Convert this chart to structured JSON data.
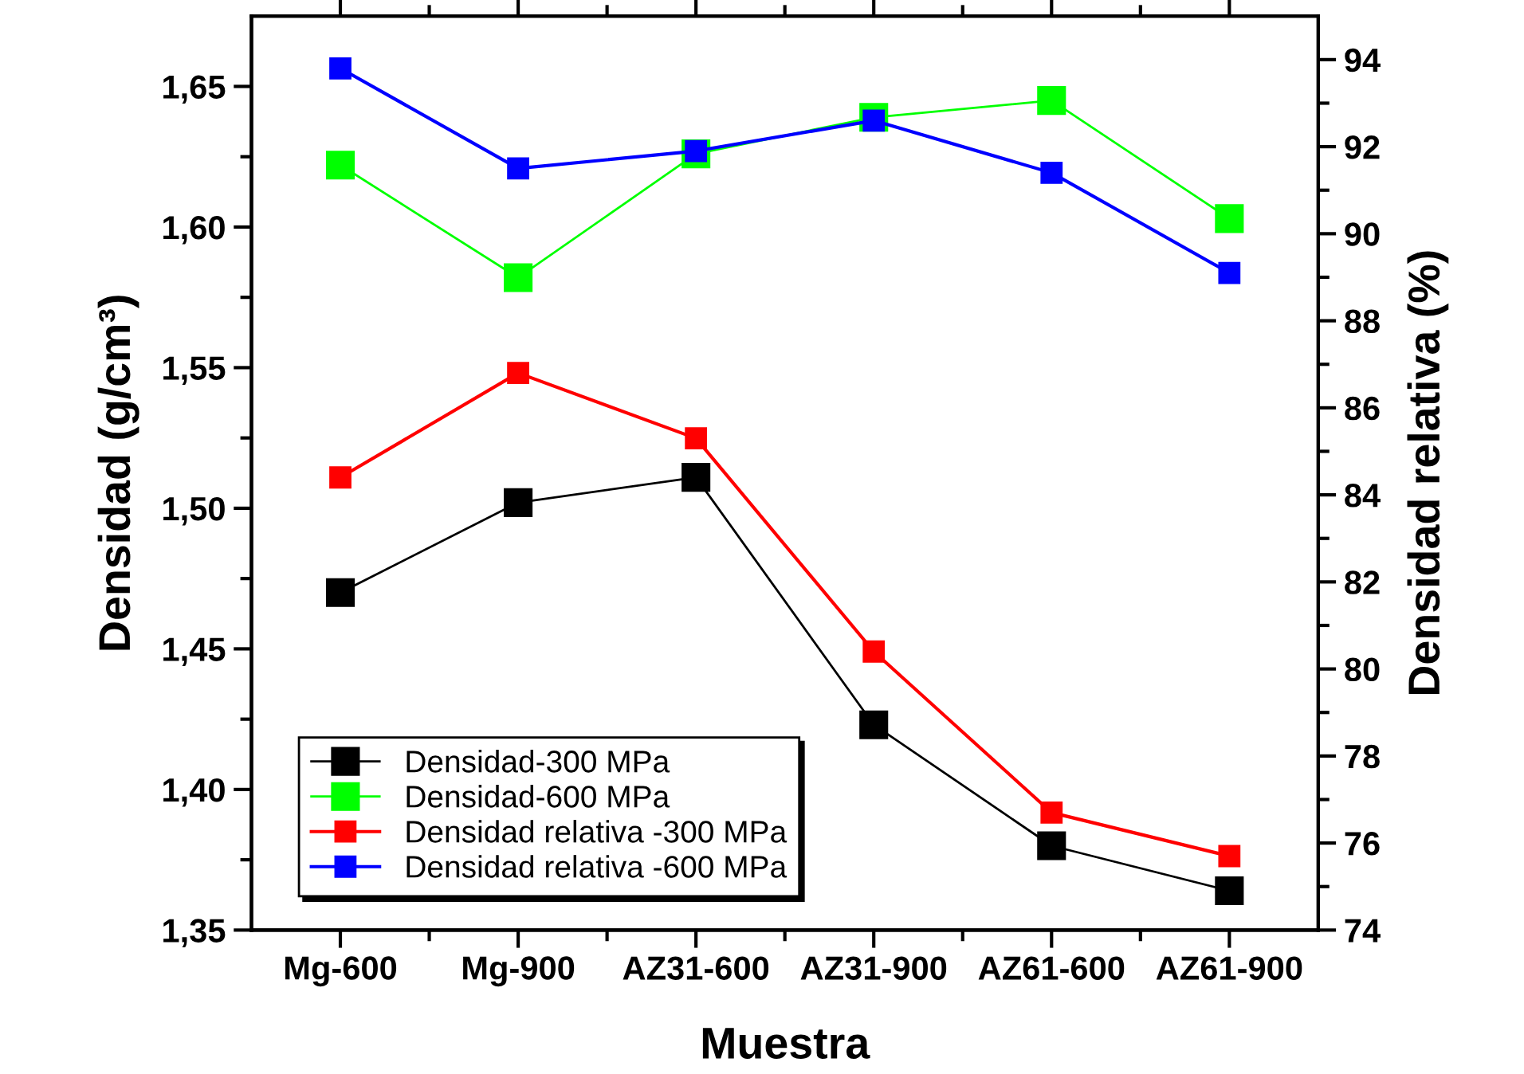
{
  "chart_data": {
    "type": "line",
    "xlabel": "Muestra",
    "ylabel": "Densidad (g/cm³)",
    "y2label": "Densidad relativa (%)",
    "categories": [
      "Mg-600",
      "Mg-900",
      "AZ31-600",
      "AZ31-900",
      "AZ61-600",
      "AZ61-900"
    ],
    "series": [
      {
        "name": "Densidad-300 MPa",
        "color": "#000000",
        "values": [
          1.47,
          1.502,
          1.511,
          1.423,
          1.38,
          1.364
        ]
      },
      {
        "name": "Densidad-600 MPa",
        "color": "#00ff00",
        "values": [
          1.622,
          1.582,
          1.626,
          1.639,
          1.645,
          1.603
        ]
      },
      {
        "name": "Densidad relativa -300 MPa",
        "color": "#ff0000",
        "axis": "y2",
        "values": [
          84.4,
          86.8,
          85.3,
          80.4,
          76.7,
          75.7
        ]
      },
      {
        "name": "Densidad relativa -600 MPa",
        "color": "#0000ff",
        "axis": "y2",
        "values": [
          93.8,
          91.5,
          91.9,
          92.6,
          91.4,
          89.1
        ]
      }
    ],
    "ylim": [
      1.35,
      1.675
    ],
    "yticks": [
      {
        "value": 1.35,
        "label": "1,35"
      },
      {
        "value": 1.4,
        "label": "1,40"
      },
      {
        "value": 1.45,
        "label": "1,45"
      },
      {
        "value": 1.5,
        "label": "1,50"
      },
      {
        "value": 1.55,
        "label": "1,55"
      },
      {
        "value": 1.6,
        "label": "1,60"
      },
      {
        "value": 1.65,
        "label": "1,65"
      }
    ],
    "y2lim": [
      74,
      95
    ],
    "y2ticks": [
      74,
      76,
      78,
      80,
      82,
      84,
      86,
      88,
      90,
      92,
      94
    ],
    "marker": "square",
    "line_style": "solid",
    "legend": "bottom left",
    "grid": false
  }
}
